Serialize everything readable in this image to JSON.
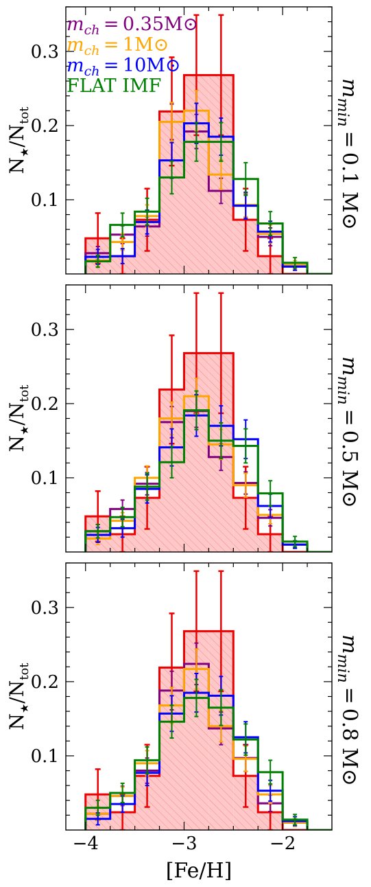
{
  "xlabel": "[Fe/H]",
  "ylabel": "N★/Ntot",
  "xlim": [
    -4.2,
    -1.5
  ],
  "ylim": [
    0.0,
    0.36
  ],
  "xticks": [
    -4,
    -3,
    -2
  ],
  "yticks": [
    0.1,
    0.2,
    0.3
  ],
  "legend": [
    {
      "label": "m_ch = 0.35M⊙",
      "color": "#800080"
    },
    {
      "label": "m_ch = 1M⊙",
      "color": "#ffa500"
    },
    {
      "label": "m_ch = 10M⊙",
      "color": "#0000ff"
    },
    {
      "label": "FLAT IMF",
      "color": "#008000"
    }
  ],
  "chart_data": [
    {
      "type": "histogram",
      "panel_label": "m_min = 0.1 M⊙",
      "bin_edges": [
        -4.0,
        -3.75,
        -3.5,
        -3.25,
        -3.0,
        -2.75,
        -2.5,
        -2.25,
        -2.0,
        -1.75,
        -1.5
      ],
      "series": [
        {
          "name": "data",
          "color": "#ee0000",
          "values": [
            0.048,
            0.024,
            0.073,
            0.219,
            0.268,
            0.268,
            0.073,
            0.024,
            0.0,
            0.0
          ],
          "err": [
            0.034,
            0.024,
            0.042,
            0.073,
            0.081,
            0.081,
            0.042,
            0.024,
            0.0,
            0.0
          ]
        },
        {
          "name": "m_ch = 0.35M⊙",
          "color": "#800080",
          "values": [
            0.028,
            0.053,
            0.064,
            0.205,
            0.192,
            0.112,
            0.092,
            0.05,
            0.01,
            0.0
          ],
          "err": [
            0.009,
            0.012,
            0.013,
            0.024,
            0.023,
            0.017,
            0.016,
            0.012,
            0.005,
            0.0
          ]
        },
        {
          "name": "m_ch = 1M⊙",
          "color": "#ffa500",
          "values": [
            0.018,
            0.043,
            0.078,
            0.205,
            0.22,
            0.134,
            0.093,
            0.054,
            0.012,
            0.0
          ],
          "err": [
            0.008,
            0.011,
            0.015,
            0.026,
            0.027,
            0.02,
            0.016,
            0.012,
            0.006,
            0.0
          ]
        },
        {
          "name": "m_ch = 10M⊙",
          "color": "#0000ff",
          "values": [
            0.023,
            0.024,
            0.07,
            0.153,
            0.203,
            0.185,
            0.092,
            0.057,
            0.01,
            0.0
          ],
          "err": [
            0.01,
            0.01,
            0.016,
            0.024,
            0.027,
            0.025,
            0.018,
            0.014,
            0.005,
            0.0
          ]
        },
        {
          "name": "FLAT IMF",
          "color": "#008000",
          "values": [
            0.017,
            0.066,
            0.084,
            0.13,
            0.178,
            0.178,
            0.128,
            0.068,
            0.015,
            0.0
          ],
          "err": [
            0.008,
            0.016,
            0.018,
            0.022,
            0.026,
            0.026,
            0.022,
            0.016,
            0.007,
            0.0
          ]
        }
      ]
    },
    {
      "type": "histogram",
      "panel_label": "m_min = 0.5 M⊙",
      "bin_edges": [
        -4.0,
        -3.75,
        -3.5,
        -3.25,
        -3.0,
        -2.75,
        -2.5,
        -2.25,
        -2.0,
        -1.75,
        -1.5
      ],
      "series": [
        {
          "name": "data",
          "color": "#ee0000",
          "values": [
            0.048,
            0.024,
            0.073,
            0.219,
            0.268,
            0.268,
            0.073,
            0.024,
            0.0,
            0.0
          ],
          "err": [
            0.034,
            0.024,
            0.042,
            0.073,
            0.081,
            0.081,
            0.042,
            0.024,
            0.0,
            0.0
          ]
        },
        {
          "name": "m_ch = 0.35M⊙",
          "color": "#800080",
          "values": [
            0.028,
            0.058,
            0.092,
            0.175,
            0.19,
            0.128,
            0.093,
            0.046,
            0.01,
            0.0
          ],
          "err": [
            0.009,
            0.012,
            0.015,
            0.021,
            0.022,
            0.018,
            0.015,
            0.011,
            0.005,
            0.0
          ]
        },
        {
          "name": "m_ch = 1M⊙",
          "color": "#ffa500",
          "values": [
            0.018,
            0.042,
            0.1,
            0.18,
            0.21,
            0.145,
            0.09,
            0.05,
            0.01,
            0.0
          ],
          "err": [
            0.008,
            0.011,
            0.016,
            0.022,
            0.024,
            0.02,
            0.016,
            0.012,
            0.005,
            0.0
          ]
        },
        {
          "name": "m_ch = 10M⊙",
          "color": "#0000ff",
          "values": [
            0.023,
            0.032,
            0.085,
            0.141,
            0.184,
            0.17,
            0.152,
            0.062,
            0.01,
            0.0
          ],
          "err": [
            0.01,
            0.012,
            0.019,
            0.025,
            0.028,
            0.027,
            0.026,
            0.016,
            0.005,
            0.0
          ]
        },
        {
          "name": "FLAT IMF",
          "color": "#008000",
          "values": [
            0.028,
            0.047,
            0.088,
            0.121,
            0.191,
            0.15,
            0.143,
            0.079,
            0.014,
            0.0
          ],
          "err": [
            0.009,
            0.013,
            0.018,
            0.021,
            0.026,
            0.024,
            0.023,
            0.017,
            0.007,
            0.0
          ]
        }
      ]
    },
    {
      "type": "histogram",
      "panel_label": "m_min = 0.8 M⊙",
      "bin_edges": [
        -4.0,
        -3.75,
        -3.5,
        -3.25,
        -3.0,
        -2.75,
        -2.5,
        -2.25,
        -2.0,
        -1.75,
        -1.5
      ],
      "series": [
        {
          "name": "data",
          "color": "#ee0000",
          "values": [
            0.048,
            0.024,
            0.073,
            0.219,
            0.268,
            0.268,
            0.073,
            0.024,
            0.0,
            0.0
          ],
          "err": [
            0.034,
            0.024,
            0.042,
            0.073,
            0.081,
            0.081,
            0.042,
            0.024,
            0.0,
            0.0
          ]
        },
        {
          "name": "m_ch = 0.35M⊙",
          "color": "#800080",
          "values": [
            0.022,
            0.046,
            0.08,
            0.188,
            0.224,
            0.137,
            0.097,
            0.036,
            0.01,
            0.0
          ],
          "err": [
            0.009,
            0.013,
            0.017,
            0.026,
            0.028,
            0.022,
            0.018,
            0.011,
            0.005,
            0.0
          ]
        },
        {
          "name": "m_ch = 1M⊙",
          "color": "#ffa500",
          "values": [
            0.022,
            0.046,
            0.09,
            0.168,
            0.217,
            0.14,
            0.096,
            0.048,
            0.01,
            0.0
          ],
          "err": [
            0.009,
            0.012,
            0.017,
            0.024,
            0.027,
            0.021,
            0.017,
            0.012,
            0.005,
            0.0
          ]
        },
        {
          "name": "m_ch = 10M⊙",
          "color": "#0000ff",
          "values": [
            0.015,
            0.035,
            0.077,
            0.157,
            0.185,
            0.181,
            0.125,
            0.053,
            0.012,
            0.0
          ],
          "err": [
            0.008,
            0.011,
            0.017,
            0.024,
            0.026,
            0.026,
            0.021,
            0.014,
            0.006,
            0.0
          ]
        },
        {
          "name": "FLAT IMF",
          "color": "#008000",
          "values": [
            0.03,
            0.05,
            0.094,
            0.146,
            0.178,
            0.165,
            0.122,
            0.078,
            0.014,
            0.0
          ],
          "err": [
            0.01,
            0.013,
            0.018,
            0.022,
            0.025,
            0.024,
            0.021,
            0.016,
            0.007,
            0.0
          ]
        }
      ]
    }
  ]
}
